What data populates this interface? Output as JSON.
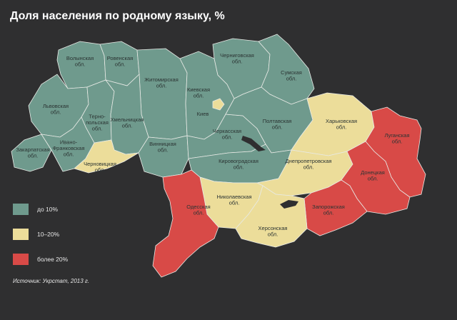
{
  "title": "Доля населения по родному языку, %",
  "colors": {
    "low": "#6f9a8d",
    "mid": "#ecdd9a",
    "high": "#d84a47",
    "water": "#2f2f30",
    "border": "#e8eae6"
  },
  "legend": [
    {
      "label": "до 10%",
      "color": "#6f9a8d"
    },
    {
      "label": "10–20%",
      "color": "#ecdd9a"
    },
    {
      "label": "более 20%",
      "color": "#d84a47"
    }
  ],
  "source": "Источник: Укрстат, 2013 г.",
  "regions": [
    {
      "id": "volyn",
      "lines": [
        "Волынская",
        "обл."
      ],
      "category": "low"
    },
    {
      "id": "rivne",
      "lines": [
        "Ровенская",
        "обл."
      ],
      "category": "low"
    },
    {
      "id": "zhytomyr",
      "lines": [
        "Житомирская",
        "обл."
      ],
      "category": "low"
    },
    {
      "id": "kyiv-oblast",
      "lines": [
        "Киевская",
        "обл."
      ],
      "category": "low"
    },
    {
      "id": "kyiv",
      "lines": [
        "Киев"
      ],
      "category": "mid"
    },
    {
      "id": "chernihiv",
      "lines": [
        "Черниговская",
        "обл."
      ],
      "category": "low"
    },
    {
      "id": "sumy",
      "lines": [
        "Сумская",
        "обл."
      ],
      "category": "low"
    },
    {
      "id": "lviv",
      "lines": [
        "Львовская",
        "обл."
      ],
      "category": "low"
    },
    {
      "id": "ternopil",
      "lines": [
        "Терно-",
        "польская",
        "обл."
      ],
      "category": "low"
    },
    {
      "id": "khmelnytskyi",
      "lines": [
        "Хмельницкая",
        "обл."
      ],
      "category": "low"
    },
    {
      "id": "vinnytsia",
      "lines": [
        "Винницкая",
        "обл."
      ],
      "category": "low"
    },
    {
      "id": "cherkasy",
      "lines": [
        "Черкасская",
        "обл."
      ],
      "category": "low"
    },
    {
      "id": "poltava",
      "lines": [
        "Полтавская",
        "обл."
      ],
      "category": "low"
    },
    {
      "id": "kharkiv",
      "lines": [
        "Харьковская",
        "обл."
      ],
      "category": "mid"
    },
    {
      "id": "luhansk",
      "lines": [
        "Луганская",
        "обл."
      ],
      "category": "high"
    },
    {
      "id": "zakarpattia",
      "lines": [
        "Закарпатская",
        "обл."
      ],
      "category": "low"
    },
    {
      "id": "ivano-frankivsk",
      "lines": [
        "Ивано-",
        "Франковская",
        "обл."
      ],
      "category": "low"
    },
    {
      "id": "chernivtsi",
      "lines": [
        "Черновицкая",
        "обл."
      ],
      "category": "mid"
    },
    {
      "id": "kirovohrad",
      "lines": [
        "Кировоградская",
        "обл."
      ],
      "category": "low"
    },
    {
      "id": "dnipropetrovsk",
      "lines": [
        "Днепропетровская",
        "обл."
      ],
      "category": "mid"
    },
    {
      "id": "donetsk",
      "lines": [
        "Донецкая",
        "обл."
      ],
      "category": "high"
    },
    {
      "id": "mykolaiv",
      "lines": [
        "Николаевская",
        "обл."
      ],
      "category": "mid"
    },
    {
      "id": "odesa",
      "lines": [
        "Одесская",
        "обл."
      ],
      "category": "high"
    },
    {
      "id": "zaporizhzhia",
      "lines": [
        "Запорожская",
        "обл."
      ],
      "category": "high"
    },
    {
      "id": "kherson",
      "lines": [
        "Херсонская",
        "обл."
      ],
      "category": "mid"
    }
  ]
}
